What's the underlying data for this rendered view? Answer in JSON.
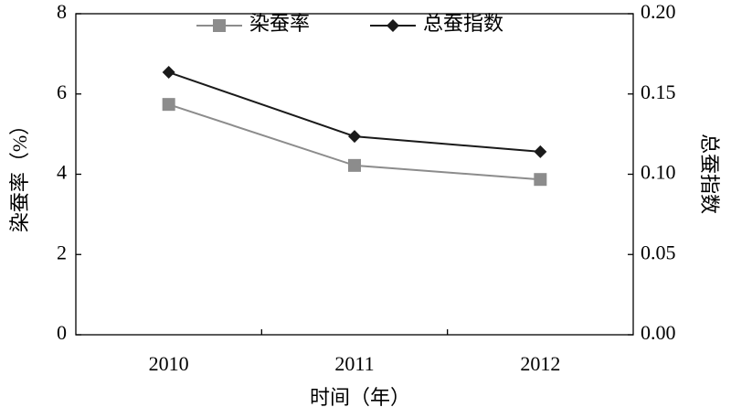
{
  "chart_data": {
    "type": "line",
    "x_label": "时间（年）",
    "y_label": "染蚕率（%）",
    "y2_label": "总蚕指数",
    "categories": [
      "2010",
      "2011",
      "2012"
    ],
    "series": [
      {
        "name": "染蚕率",
        "color": "#8c8c8c",
        "marker": "square",
        "values": [
          5.74,
          4.22,
          3.87
        ]
      },
      {
        "name": "总蚕指数",
        "color": "#1a1a1a",
        "marker": "diamond",
        "axis": "y2",
        "values": [
          0.1635,
          0.1236,
          0.114
        ]
      }
    ],
    "ylim": [
      0,
      8
    ],
    "yticks": [
      0,
      2,
      4,
      6,
      8
    ],
    "y2lim": [
      0,
      0.2
    ],
    "y2ticks": [
      {
        "value": 0,
        "label": "0.00"
      },
      {
        "value": 0.05,
        "label": "0.05"
      },
      {
        "value": 0.1,
        "label": "0.10"
      },
      {
        "value": 0.15,
        "label": "0.15"
      },
      {
        "value": 0.2,
        "label": "0.20"
      }
    ],
    "legend": "top"
  }
}
